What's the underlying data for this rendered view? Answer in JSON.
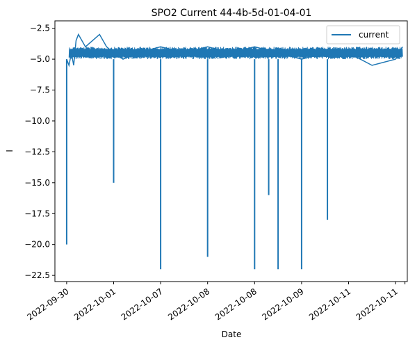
{
  "chart_data": {
    "type": "line",
    "title": "SPO2 Current 44-4b-5d-01-04-01",
    "xlabel": "Date",
    "ylabel": "I",
    "x_tick_labels": [
      "2022-09-30",
      "2022-10-01",
      "2022-10-07",
      "2022-10-08",
      "2022-10-08",
      "2022-10-09",
      "2022-10-11",
      "2022-10-11"
    ],
    "y_ticks": [
      -22.5,
      -20.0,
      -17.5,
      -15.0,
      -12.5,
      -10.0,
      -7.5,
      -5.0,
      -2.5
    ],
    "y_tick_labels": [
      "−22.5",
      "−20.0",
      "−17.5",
      "−15.0",
      "−12.5",
      "−10.0",
      "−7.5",
      "−5.0",
      "−2.5"
    ],
    "ylim": [
      -23.0,
      -1.9
    ],
    "xlim": [
      -0.25,
      7.25
    ],
    "grid": false,
    "legend_position": "top-right",
    "series": [
      {
        "name": "current",
        "color": "#1f77b4",
        "baseline": [
          [
            0.0,
            -5.0
          ],
          [
            0.05,
            -5.5
          ],
          [
            0.1,
            -4.5
          ],
          [
            0.15,
            -5.5
          ],
          [
            0.2,
            -3.5
          ],
          [
            0.25,
            -3.0
          ],
          [
            0.4,
            -4.0
          ],
          [
            0.55,
            -3.5
          ],
          [
            0.7,
            -3.0
          ],
          [
            0.85,
            -4.0
          ],
          [
            1.0,
            -4.5
          ],
          [
            1.2,
            -5.0
          ],
          [
            1.5,
            -4.5
          ],
          [
            2.0,
            -4.0
          ],
          [
            2.5,
            -4.5
          ],
          [
            3.0,
            -4.0
          ],
          [
            3.5,
            -4.5
          ],
          [
            4.0,
            -4.0
          ],
          [
            4.5,
            -4.5
          ],
          [
            5.0,
            -5.0
          ],
          [
            5.5,
            -4.5
          ],
          [
            6.0,
            -4.5
          ],
          [
            6.5,
            -5.5
          ],
          [
            7.0,
            -5.0
          ],
          [
            7.15,
            -4.0
          ]
        ],
        "spikes": [
          {
            "x": 0.0,
            "y": -20.0
          },
          {
            "x": 1.0,
            "y": -15.0
          },
          {
            "x": 2.0,
            "y": -22.0
          },
          {
            "x": 3.0,
            "y": -21.0
          },
          {
            "x": 4.0,
            "y": -22.0
          },
          {
            "x": 4.3,
            "y": -16.0
          },
          {
            "x": 4.5,
            "y": -22.0
          },
          {
            "x": 5.0,
            "y": -22.0
          },
          {
            "x": 5.55,
            "y": -18.0
          }
        ],
        "band": {
          "from": 0.05,
          "to": 7.15,
          "low": -5.0,
          "high": -4.0
        }
      }
    ]
  }
}
